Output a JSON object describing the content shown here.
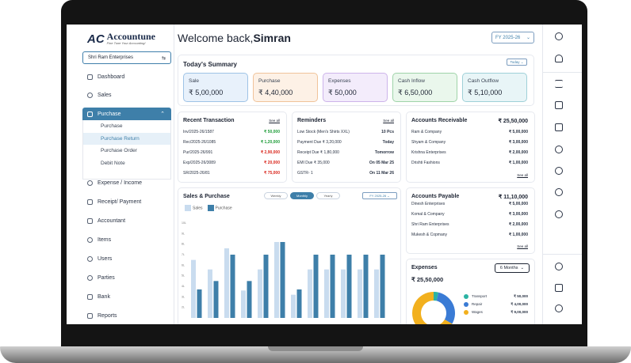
{
  "brand": {
    "name": "Accountune",
    "tagline": "Fine Tune Your Accounting!"
  },
  "company": {
    "name": "Shri Ram Enterprises"
  },
  "nav": {
    "dashboard": "Dashboard",
    "sales": "Sales",
    "purchase": "Purchase",
    "purchase_sub": [
      "Purchase",
      "Purchase Return",
      "Purchase Order",
      "Debit Note"
    ],
    "expense": "Expense / Income",
    "receipt": "Receipt/ Payment",
    "accountant": "Accountant",
    "items": "Items",
    "users": "Users",
    "parties": "Parties",
    "bank": "Bank",
    "reports": "Reports"
  },
  "header": {
    "welcome": "Welcome back,",
    "user": "Simran",
    "fy": "FY 2025-26"
  },
  "summary": {
    "title": "Today's Summary",
    "filter": "Today",
    "cards": [
      {
        "label": "Sale",
        "value": "₹ 5,00,000",
        "bg": "#e8f1fb",
        "border": "#9fc3e6"
      },
      {
        "label": "Purchase",
        "value": "₹ 4,40,000",
        "bg": "#fdf1e6",
        "border": "#f0c39a"
      },
      {
        "label": "Expenses",
        "value": "₹ 50,000",
        "bg": "#f3ecfb",
        "border": "#cdb4ea"
      },
      {
        "label": "Cash Inflow",
        "value": "₹ 6,50,000",
        "bg": "#eaf7ec",
        "border": "#9fd3a9"
      },
      {
        "label": "Cash Outflow",
        "value": "₹ 5,10,000",
        "bg": "#e8f5f7",
        "border": "#9fd0d8"
      }
    ]
  },
  "recent": {
    "title": "Recent Transaction",
    "see_all": "See all",
    "rows": [
      {
        "id": "Inv/2025-26/1587",
        "amount": "₹ 50,000",
        "type": "green"
      },
      {
        "id": "Rec/2025-26/1085",
        "amount": "₹ 1,20,000",
        "type": "green"
      },
      {
        "id": "Pur/2025-26/991",
        "amount": "₹ 2,90,000",
        "type": "red"
      },
      {
        "id": "Exp/2025-26/3089",
        "amount": "₹ 20,000",
        "type": "red"
      },
      {
        "id": "SR/2025-26/81",
        "amount": "₹ 75,000",
        "type": "red"
      }
    ]
  },
  "reminders": {
    "title": "Reminders",
    "see_all": "See all",
    "rows": [
      {
        "text": "Low Stock (Men's Shirts XXL)",
        "value": "10 Pcs"
      },
      {
        "text": "Payment Due ₹ 3,20,000",
        "value": "Today"
      },
      {
        "text": "Receipt Due ₹ 1,80,000",
        "value": "Tomorrow"
      },
      {
        "text": "EMI Due ₹ 35,000",
        "value": "On 05 Mar 25"
      },
      {
        "text": "GSTR- 1",
        "value": "On 11 Mar 26"
      }
    ]
  },
  "receivable": {
    "title": "Accounts Receivable",
    "total": "₹ 25,50,000",
    "see_all": "See all",
    "rows": [
      {
        "name": "Ram & Company",
        "amount": "₹ 5,00,000"
      },
      {
        "name": "Shyam & Company",
        "amount": "₹ 3,00,000"
      },
      {
        "name": "Krishna Enterprises",
        "amount": "₹ 2,00,000"
      },
      {
        "name": "Drishti Fashions",
        "amount": "₹ 1,00,000"
      }
    ]
  },
  "payable": {
    "title": "Accounts Payable",
    "total": "₹ 11,10,000",
    "see_all": "See all",
    "rows": [
      {
        "name": "Dinesh Enterprises",
        "amount": "₹ 5,00,000"
      },
      {
        "name": "Komal & Company",
        "amount": "₹ 3,00,000"
      },
      {
        "name": "Shri Ram Enterprises",
        "amount": "₹ 2,00,000"
      },
      {
        "name": "Mukesh & Copmany",
        "amount": "₹ 1,00,000"
      }
    ]
  },
  "expenses": {
    "title": "Expenses",
    "period": "6 Months",
    "total": "₹ 25,50,000",
    "rows": [
      {
        "name": "Transport",
        "amount": "₹ 50,000",
        "color": "#2bb3a3"
      },
      {
        "name": "Repair",
        "amount": "₹ 4,00,000",
        "color": "#3a7bd5"
      },
      {
        "name": "Wages",
        "amount": "₹ 9,00,000",
        "color": "#f2b01e"
      }
    ]
  },
  "sales_purchase": {
    "title": "Sales & Purchase",
    "periods": [
      "Weekly",
      "Monthly",
      "Yearly"
    ],
    "active_period": "Monthly",
    "fy": "FY 2025-26"
  },
  "chart_data": {
    "type": "bar",
    "title": "Sales & Purchase",
    "series": [
      {
        "name": "Sales",
        "color": "#c9dcef",
        "values": [
          6.5,
          5.6,
          7.6,
          3.6,
          5.6,
          8.2,
          3.2,
          5.6,
          5.6,
          5.6,
          5.6,
          5.6
        ]
      },
      {
        "name": "Purchase",
        "color": "#3e7fa9",
        "values": [
          3.7,
          4.5,
          7.0,
          4.5,
          7.0,
          8.2,
          3.7,
          7.0,
          7.0,
          7.0,
          7.0,
          7.0
        ]
      }
    ],
    "y_ticks": [
      "10L",
      "9L",
      "8L",
      "7L",
      "6L",
      "5L",
      "4L",
      "3L",
      "2L"
    ],
    "ylim": [
      1,
      10
    ],
    "grid": false,
    "legend": "top-left"
  },
  "colors": {
    "accent": "#3e7fa9",
    "green": "#1f9d3a",
    "red": "#d9261c"
  }
}
